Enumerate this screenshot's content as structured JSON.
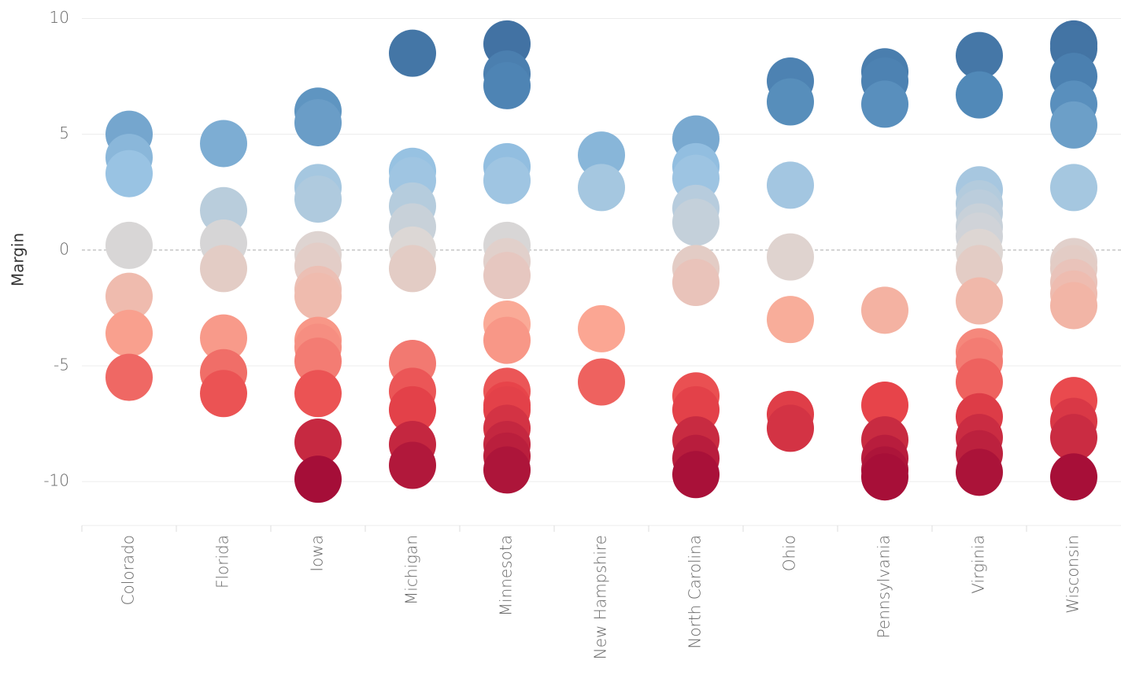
{
  "chart_data": {
    "type": "strip",
    "y_label": "Margin",
    "categories": [
      "Colorado",
      "Florida",
      "Iowa",
      "Michigan",
      "Minnesota",
      "New Hampshire",
      "North Carolina",
      "Ohio",
      "Pennsylvania",
      "Virginia",
      "Wisconsin"
    ],
    "values": [
      [
        5.0,
        4.0,
        3.3,
        0.2,
        -2.0,
        -3.6,
        -5.5
      ],
      [
        4.6,
        1.7,
        0.3,
        -0.8,
        -3.8,
        -5.3,
        -6.2
      ],
      [
        6.0,
        5.5,
        2.7,
        2.2,
        -0.2,
        -0.7,
        -1.7,
        -2.0,
        -3.9,
        -4.2,
        -4.8,
        -6.2,
        -8.3,
        -9.9
      ],
      [
        8.5,
        3.4,
        3.0,
        1.9,
        1.0,
        0.0,
        -0.8,
        -4.9,
        -6.1,
        -6.9,
        -8.4,
        -9.3
      ],
      [
        8.9,
        7.6,
        7.1,
        3.6,
        3.0,
        0.2,
        -0.5,
        -1.1,
        -3.2,
        -3.9,
        -6.1,
        -6.7,
        -6.9,
        -7.7,
        -8.4,
        -8.9,
        -9.5
      ],
      [
        4.1,
        2.7,
        -3.4,
        -5.7
      ],
      [
        4.8,
        3.6,
        3.1,
        1.8,
        1.2,
        -0.8,
        -1.4,
        -6.3,
        -6.9,
        -8.2,
        -9.0,
        -9.7
      ],
      [
        7.3,
        6.4,
        2.8,
        -0.3,
        -3.0,
        -7.1,
        -7.7
      ],
      [
        7.7,
        7.3,
        6.3,
        -2.6,
        -6.7,
        -8.2,
        -9.0,
        -9.5,
        -9.8
      ],
      [
        8.4,
        6.7,
        2.6,
        2.0,
        1.6,
        1.0,
        0.6,
        -0.1,
        -0.8,
        -2.2,
        -4.4,
        -4.8,
        -5.7,
        -7.2,
        -8.1,
        -8.8,
        -9.6
      ],
      [
        8.9,
        8.7,
        7.5,
        6.3,
        5.4,
        2.7,
        -0.5,
        -0.8,
        -1.4,
        -1.9,
        -2.4,
        -6.5,
        -7.4,
        -8.1,
        -9.8
      ]
    ],
    "color_scale": [
      "#a30c37",
      "#e8454a",
      "#fba894",
      "#dcd7d5",
      "#98c3e3",
      "#5189b8",
      "#3a6698"
    ],
    "ylim": [
      -11.9,
      10.8
    ],
    "yticks": [
      -10,
      -5,
      0,
      5,
      10
    ],
    "grid": true
  }
}
